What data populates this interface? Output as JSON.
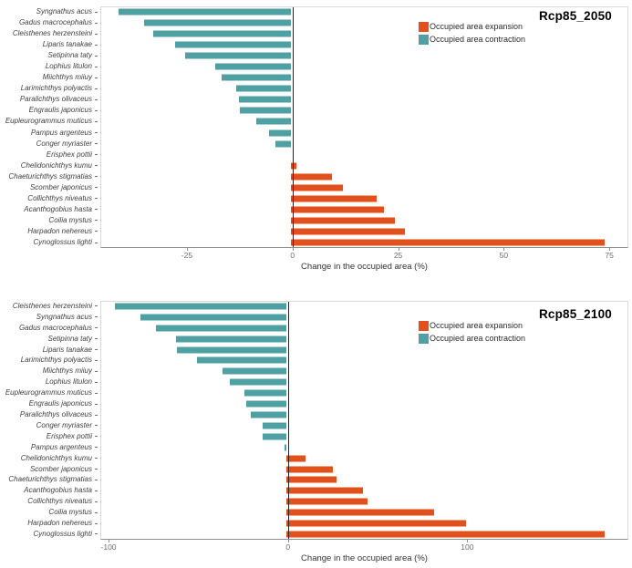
{
  "colors": {
    "expansion": "#e2501b",
    "contraction": "#4fa0a2",
    "panel_border": "#dadada",
    "axis_line": "#8f8f8f",
    "zero_line": "#262626",
    "tick_label": "#6e6e6e",
    "species_label": "#3f3f3f"
  },
  "chart_data": [
    {
      "type": "bar",
      "orientation": "horizontal",
      "title": "Rcp85_2050",
      "xlabel": "Change in the occupied area (%)",
      "ylabel": "",
      "xlim": [
        -45.5,
        79.5
      ],
      "xticks": [
        -25,
        0,
        25,
        50,
        75
      ],
      "grid": false,
      "legend_position": "inside-top-right",
      "legend": [
        {
          "label": "Occupied area expansion",
          "color": "#e2501b"
        },
        {
          "label": "Occupied area contraction",
          "color": "#4fa0a2"
        }
      ],
      "categories": [
        "Syngnathus acus",
        "Gadus macrocephalus",
        "Cleisthenes herzensteini",
        "Liparis tanakae",
        "Setipinna taty",
        "Lophius litulon",
        "Miichthys miiuy",
        "Larimichthys polyactis",
        "Paralichthys olivaceus",
        "Engraulis japonicus",
        "Eupleurogrammus muticus",
        "Pampus argenteus",
        "Conger myriaster",
        "Erisphex pottii",
        "Chelidonichthys kumu",
        "Chaeturichthys stigmatias",
        "Scomber japonicus",
        "Collichthys niveatus",
        "Acanthogobius hasta",
        "Coilia mystus",
        "Harpadon nehereus",
        "Cynoglossus lighti"
      ],
      "values": [
        -40.5,
        -34.5,
        -32.3,
        -27.2,
        -24.8,
        -17.9,
        -16.2,
        -12.9,
        -12.2,
        -11.9,
        -8.1,
        -5.1,
        -3.7,
        0,
        1.3,
        9.8,
        12.2,
        20.3,
        22.0,
        24.6,
        26.8,
        74.0
      ]
    },
    {
      "type": "bar",
      "orientation": "horizontal",
      "title": "Rcp85_2100",
      "xlabel": "Change in the occupied area (%)",
      "ylabel": "",
      "xlim": [
        -104.6,
        189.8
      ],
      "xticks": [
        -100,
        0,
        100
      ],
      "grid": false,
      "legend_position": "inside-top-right",
      "legend": [
        {
          "label": "Occupied area expansion",
          "color": "#e2501b"
        },
        {
          "label": "Occupied area contraction",
          "color": "#4fa0a2"
        }
      ],
      "categories": [
        "Cleisthenes herzensteini",
        "Syngnathus acus",
        "Gadus macrocephalus",
        "Setipinna taty",
        "Liparis tanakae",
        "Larimichthys polyactis",
        "Miichthys miiuy",
        "Lophius litulon",
        "Eupleurogrammus muticus",
        "Engraulis japonicus",
        "Paralichthys olivaceus",
        "Conger myriaster",
        "Erisphex pottii",
        "Pampus argenteus",
        "Chelidonichthys kumu",
        "Scomber japonicus",
        "Chaeturichthys stigmatias",
        "Acanthogobius hasta",
        "Collichthys niveatus",
        "Coilia mystus",
        "Harpadon nehereus",
        "Cynoglossus lighti"
      ],
      "values": [
        -94.9,
        -80.6,
        -72.4,
        -61.1,
        -60.4,
        -49.5,
        -35.2,
        -31.5,
        -23.0,
        -22.4,
        -19.4,
        -12.9,
        -12.9,
        -1.0,
        10.7,
        25.9,
        28.1,
        42.7,
        44.9,
        82.3,
        99.7,
        176.7
      ]
    }
  ]
}
